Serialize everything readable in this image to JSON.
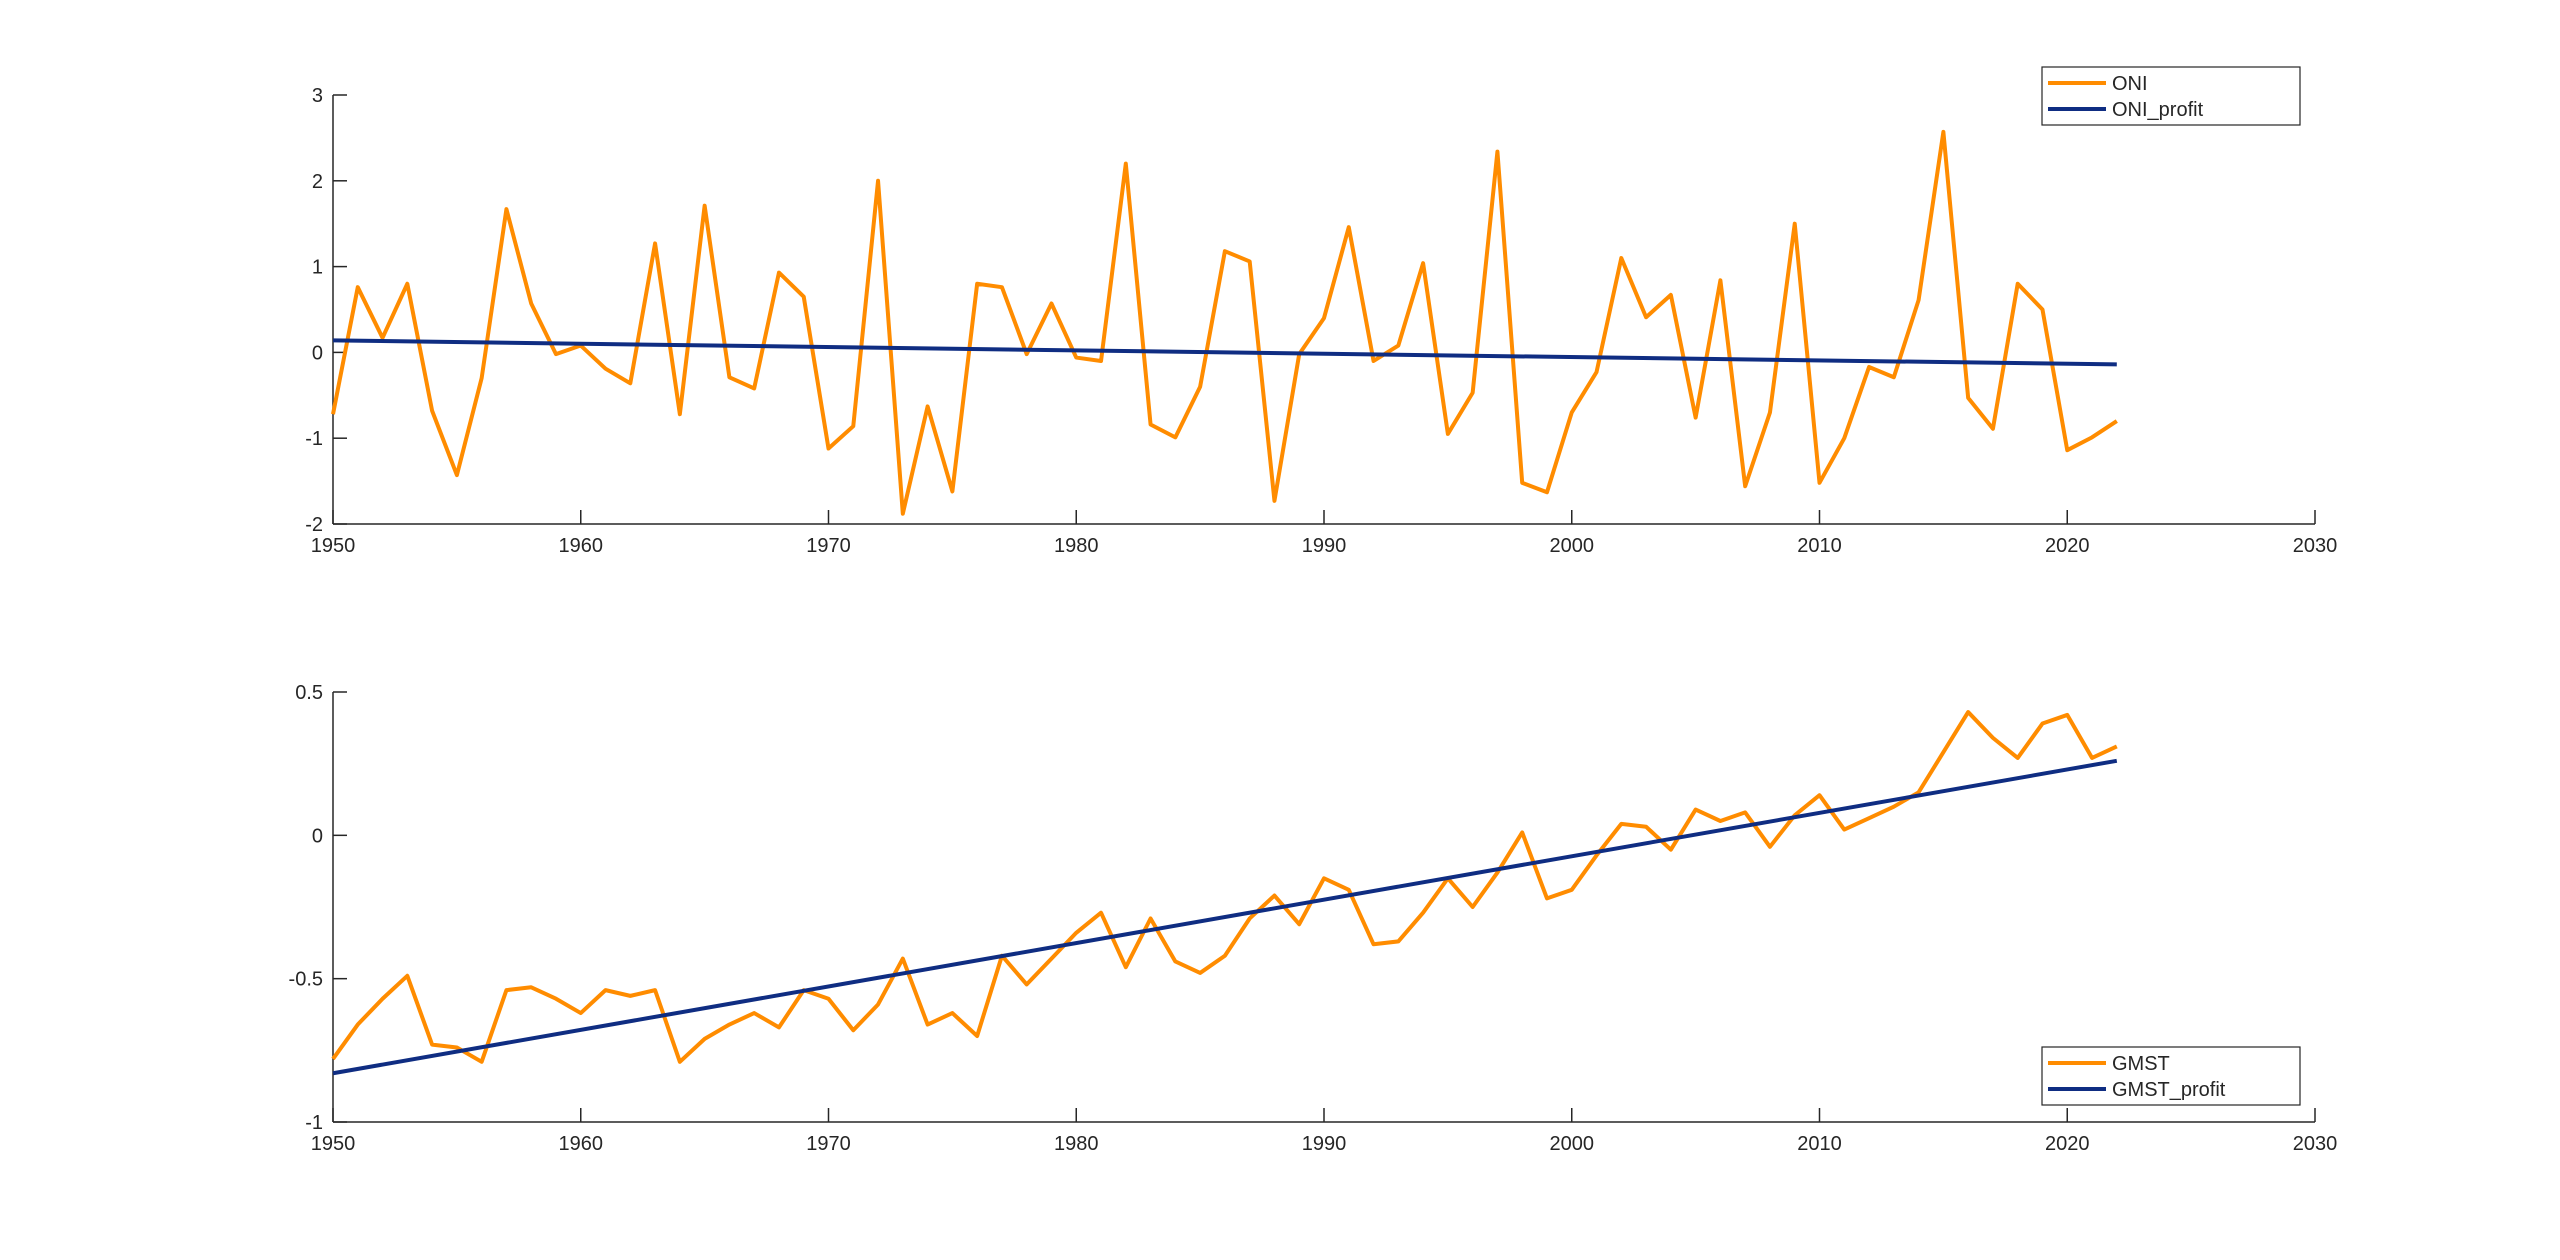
{
  "chart_data": [
    {
      "type": "line",
      "legend": "northeast",
      "x": [
        1950,
        1951,
        1952,
        1953,
        1954,
        1955,
        1956,
        1957,
        1958,
        1959,
        1960,
        1961,
        1962,
        1963,
        1964,
        1965,
        1966,
        1967,
        1968,
        1969,
        1970,
        1971,
        1972,
        1973,
        1974,
        1975,
        1976,
        1977,
        1978,
        1979,
        1980,
        1981,
        1982,
        1983,
        1984,
        1985,
        1986,
        1987,
        1988,
        1989,
        1990,
        1991,
        1992,
        1993,
        1994,
        1995,
        1996,
        1997,
        1998,
        1999,
        2000,
        2001,
        2002,
        2003,
        2004,
        2005,
        2006,
        2007,
        2008,
        2009,
        2010,
        2011,
        2012,
        2013,
        2014,
        2015,
        2016,
        2017,
        2018,
        2019,
        2020,
        2021,
        2022
      ],
      "series": [
        {
          "name": "ONI",
          "color": "#ff8c00",
          "values": [
            -0.72,
            0.76,
            0.17,
            0.8,
            -0.68,
            -1.43,
            -0.3,
            1.67,
            0.57,
            -0.02,
            0.08,
            -0.19,
            -0.36,
            1.27,
            -0.72,
            1.71,
            -0.29,
            -0.42,
            0.93,
            0.65,
            -1.12,
            -0.86,
            2.0,
            -1.88,
            -0.63,
            -1.62,
            0.8,
            0.76,
            -0.02,
            0.57,
            -0.06,
            -0.1,
            2.2,
            -0.84,
            -0.99,
            -0.4,
            1.18,
            1.06,
            -1.73,
            -0.02,
            0.4,
            1.46,
            -0.1,
            0.08,
            1.04,
            -0.95,
            -0.47,
            2.34,
            -1.52,
            -1.63,
            -0.7,
            -0.23,
            1.1,
            0.41,
            0.67,
            -0.76,
            0.84,
            -1.56,
            -0.7,
            1.5,
            -1.52,
            -1.0,
            -0.17,
            -0.29,
            0.61,
            2.57,
            -0.53,
            -0.89,
            0.8,
            0.5,
            -1.14,
            -0.99,
            -0.8
          ]
        },
        {
          "name": "ONI_profit",
          "color": "#0f2d82",
          "x": [
            1950,
            2022
          ],
          "values": [
            0.14,
            -0.14
          ]
        }
      ],
      "xlim": [
        1950,
        2030
      ],
      "xticks": [
        1950,
        1960,
        1970,
        1980,
        1990,
        2000,
        2010,
        2020,
        2030
      ],
      "ylim": [
        -2,
        3
      ],
      "yticks": [
        -2,
        -1,
        0,
        1,
        2,
        3
      ]
    },
    {
      "type": "line",
      "legend": "southeast",
      "x": [
        1950,
        1951,
        1952,
        1953,
        1954,
        1955,
        1956,
        1957,
        1958,
        1959,
        1960,
        1961,
        1962,
        1963,
        1964,
        1965,
        1966,
        1967,
        1968,
        1969,
        1970,
        1971,
        1972,
        1973,
        1974,
        1975,
        1976,
        1977,
        1978,
        1979,
        1980,
        1981,
        1982,
        1983,
        1984,
        1985,
        1986,
        1987,
        1988,
        1989,
        1990,
        1991,
        1992,
        1993,
        1994,
        1995,
        1996,
        1997,
        1998,
        1999,
        2000,
        2001,
        2002,
        2003,
        2004,
        2005,
        2006,
        2007,
        2008,
        2009,
        2010,
        2011,
        2012,
        2013,
        2014,
        2015,
        2016,
        2017,
        2018,
        2019,
        2020,
        2021,
        2022
      ],
      "series": [
        {
          "name": "GMST",
          "color": "#ff8c00",
          "values": [
            -0.78,
            -0.66,
            -0.57,
            -0.49,
            -0.73,
            -0.74,
            -0.79,
            -0.54,
            -0.53,
            -0.57,
            -0.62,
            -0.54,
            -0.56,
            -0.54,
            -0.79,
            -0.71,
            -0.66,
            -0.62,
            -0.67,
            -0.54,
            -0.57,
            -0.68,
            -0.59,
            -0.43,
            -0.66,
            -0.62,
            -0.7,
            -0.42,
            -0.52,
            -0.43,
            -0.34,
            -0.27,
            -0.46,
            -0.29,
            -0.44,
            -0.48,
            -0.42,
            -0.29,
            -0.21,
            -0.31,
            -0.15,
            -0.19,
            -0.38,
            -0.37,
            -0.27,
            -0.15,
            -0.25,
            -0.13,
            0.01,
            -0.22,
            -0.19,
            -0.07,
            0.04,
            0.03,
            -0.05,
            0.09,
            0.05,
            0.08,
            -0.04,
            0.07,
            0.14,
            0.02,
            0.06,
            0.1,
            0.15,
            0.29,
            0.43,
            0.34,
            0.27,
            0.39,
            0.42,
            0.27,
            0.31
          ]
        },
        {
          "name": "GMST_profit",
          "color": "#0f2d82",
          "x": [
            1950,
            2022
          ],
          "values": [
            -0.83,
            0.26
          ]
        }
      ],
      "xlim": [
        1950,
        2030
      ],
      "xticks": [
        1950,
        1960,
        1970,
        1980,
        1990,
        2000,
        2010,
        2020,
        2030
      ],
      "ylim": [
        -1,
        0.5
      ],
      "yticks": [
        -1,
        -0.5,
        0,
        0.5
      ]
    }
  ]
}
